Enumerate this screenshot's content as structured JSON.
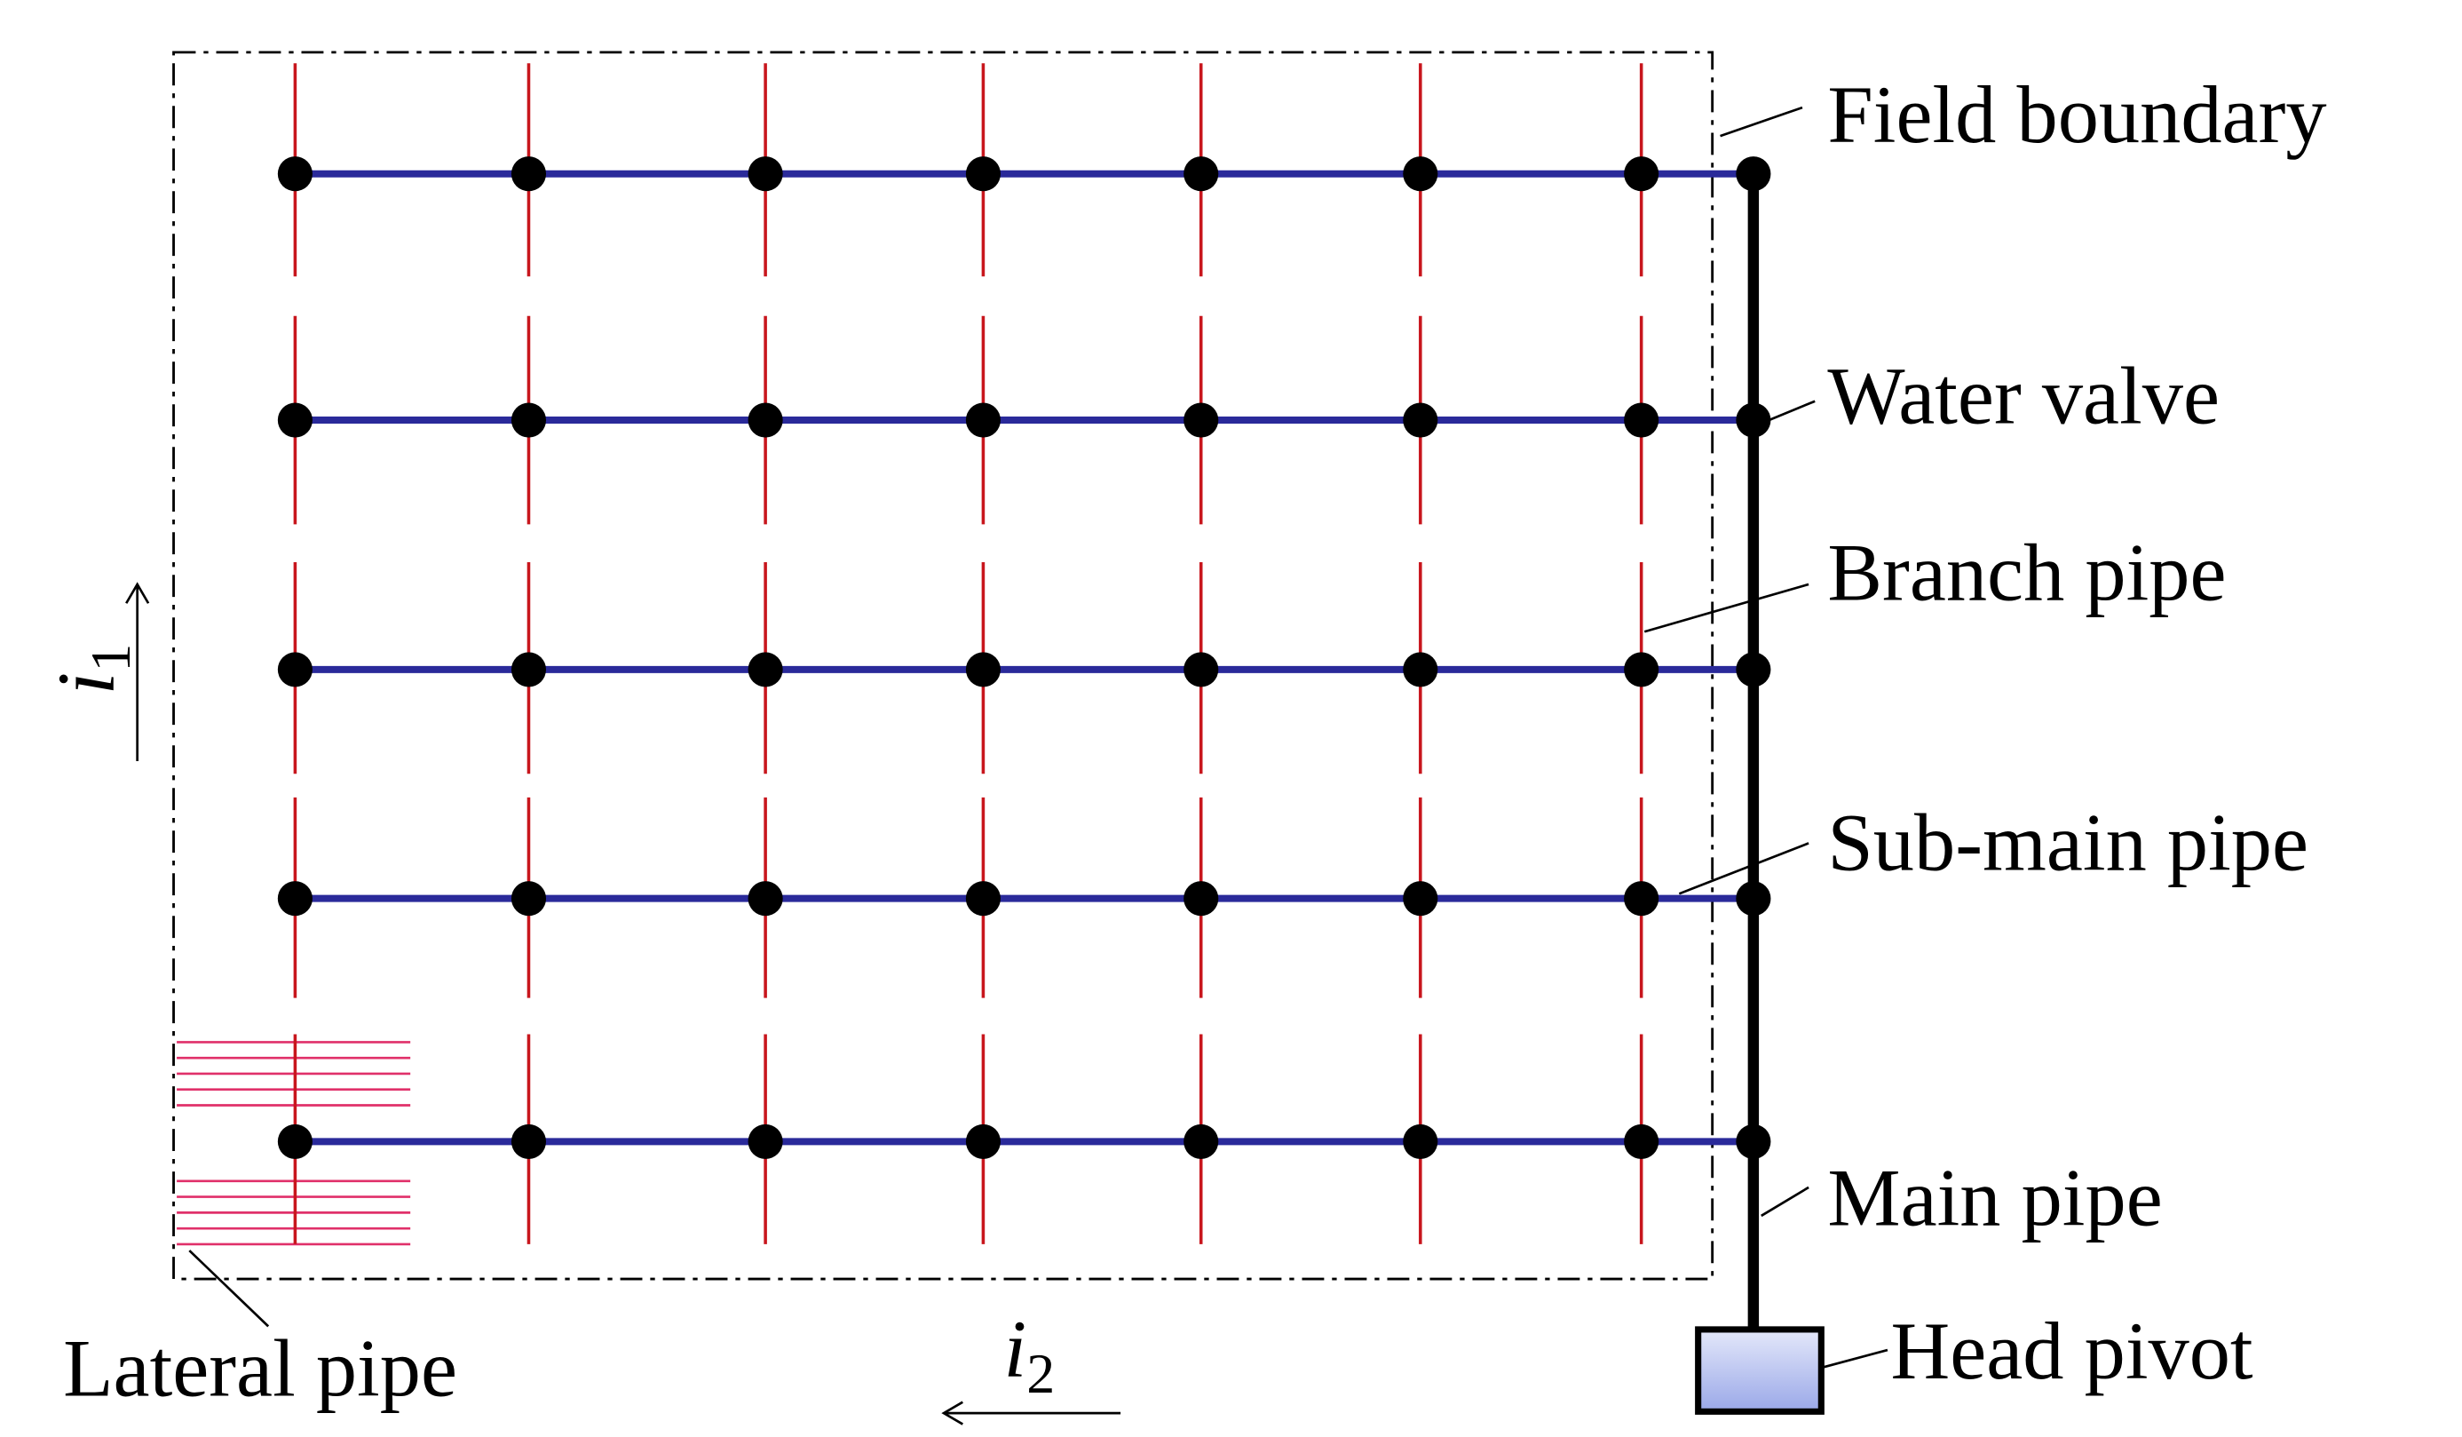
{
  "labels": {
    "field_boundary": "Field boundary",
    "water_valve": "Water valve",
    "branch_pipe": "Branch pipe",
    "sub_main_pipe": "Sub-main pipe",
    "main_pipe": "Main pipe",
    "head_pivot": "Head pivot",
    "lateral_pipe": "Lateral pipe"
  },
  "directions": {
    "i1": {
      "symbol": "i",
      "subscript": "1"
    },
    "i2": {
      "symbol": "i",
      "subscript": "2"
    }
  }
}
